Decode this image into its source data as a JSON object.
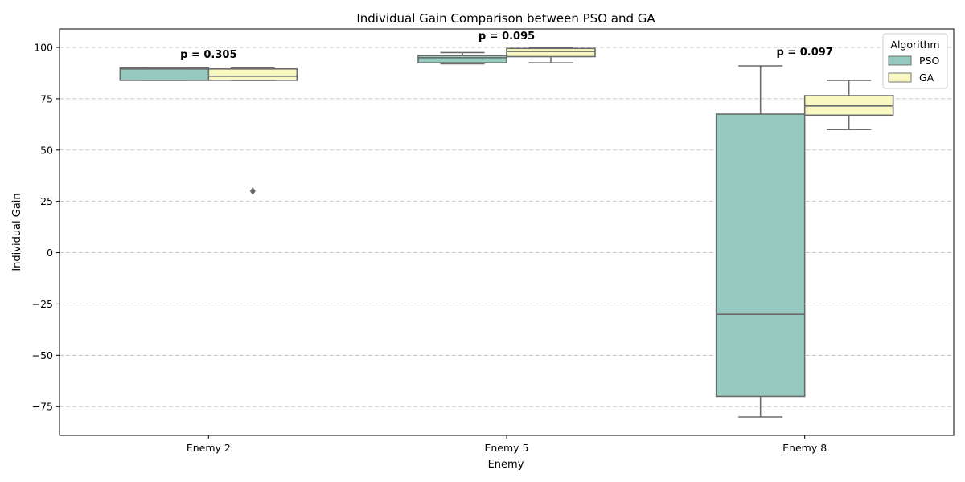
{
  "chart_data": {
    "type": "box",
    "title": "Individual Gain Comparison between PSO and GA",
    "xlabel": "Enemy",
    "ylabel": "Individual Gain",
    "ylim": [
      -89,
      109
    ],
    "yticks": [
      -75,
      -50,
      -25,
      0,
      25,
      50,
      75,
      100
    ],
    "grid": "y-dashed",
    "legend": {
      "title": "Algorithm",
      "position": "top-right"
    },
    "categories": [
      "Enemy 2",
      "Enemy 5",
      "Enemy 8"
    ],
    "series": [
      {
        "name": "PSO",
        "color": "#96cac0",
        "boxes": [
          {
            "whisker_low": 84,
            "q1": 84,
            "median": 89.5,
            "q3": 90,
            "whisker_high": 90,
            "outliers": []
          },
          {
            "whisker_low": 92,
            "q1": 92.5,
            "median": 95,
            "q3": 96,
            "whisker_high": 97.5,
            "outliers": []
          },
          {
            "whisker_low": -80,
            "q1": -70,
            "median": -30,
            "q3": 67.5,
            "whisker_high": 91,
            "outliers": []
          }
        ]
      },
      {
        "name": "GA",
        "color": "#f9f8c1",
        "boxes": [
          {
            "whisker_low": 84,
            "q1": 84,
            "median": 86,
            "q3": 89.5,
            "whisker_high": 90,
            "outliers": [
              30
            ]
          },
          {
            "whisker_low": 92.5,
            "q1": 95.5,
            "median": 98,
            "q3": 99.5,
            "whisker_high": 100,
            "outliers": []
          },
          {
            "whisker_low": 60,
            "q1": 67,
            "median": 71.5,
            "q3": 76.5,
            "whisker_high": 84,
            "outliers": []
          }
        ]
      }
    ],
    "annotations": [
      {
        "category": "Enemy 2",
        "text": "p = 0.305",
        "y": 95
      },
      {
        "category": "Enemy 5",
        "text": "p = 0.095",
        "y": 104
      },
      {
        "category": "Enemy 8",
        "text": "p = 0.097",
        "y": 96
      }
    ]
  }
}
